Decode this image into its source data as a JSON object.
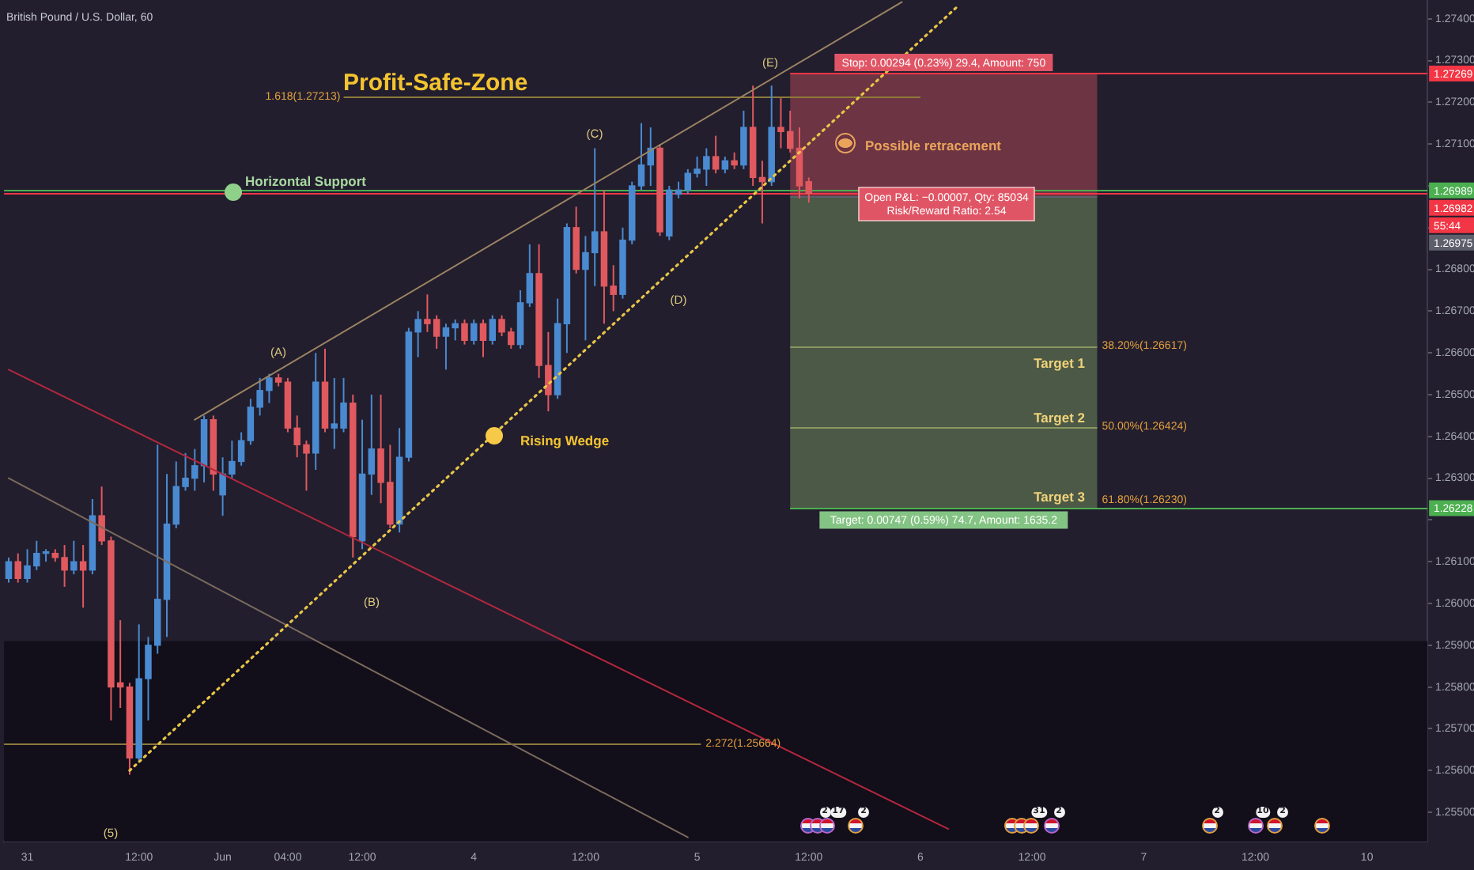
{
  "chart_data": {
    "type": "candlestick",
    "title": "British Pound / U.S. Dollar, 60",
    "categories": [
      null,
      null,
      "31",
      null,
      null,
      null,
      null,
      null,
      null,
      null,
      null,
      null,
      null,
      null,
      "12:00",
      null,
      null,
      null,
      null,
      null,
      null,
      null,
      null,
      "Jun",
      null,
      null,
      null,
      null,
      null,
      null,
      "04:00",
      null,
      null,
      null,
      null,
      null,
      null,
      null,
      "12:00",
      null,
      null,
      null,
      null,
      null,
      null,
      null,
      null,
      null,
      null,
      null,
      "4",
      null,
      null,
      null,
      null,
      null,
      null,
      null,
      null,
      null,
      null,
      null,
      "12:00",
      null,
      null,
      null,
      null,
      null,
      null,
      null,
      null,
      null,
      null,
      null,
      "5",
      null,
      null,
      null,
      null,
      null,
      null,
      null,
      null,
      null,
      null,
      null,
      "12:00",
      null,
      null,
      null,
      null,
      null,
      null,
      null,
      null,
      null,
      null,
      null,
      "6",
      null,
      null,
      null,
      null,
      null,
      null,
      null,
      null,
      null,
      null,
      null,
      "12:00",
      null,
      null,
      null,
      null,
      null,
      null,
      null,
      null,
      null,
      null,
      null,
      "7",
      null,
      null,
      null,
      null,
      null,
      null,
      null,
      null,
      null,
      null,
      null,
      "12:00",
      null,
      null,
      null,
      null,
      null,
      null,
      null,
      null,
      null,
      null,
      null,
      "10",
      null,
      null,
      null,
      null,
      null,
      null
    ],
    "ohlc": [
      [
        1.2606,
        1.2611,
        1.2605,
        1.261
      ],
      [
        1.261,
        1.2612,
        1.2605,
        1.2606
      ],
      [
        1.2606,
        1.2613,
        1.2605,
        1.2609
      ],
      [
        1.2609,
        1.2615,
        1.2608,
        1.2612
      ],
      [
        1.2612,
        1.2613,
        1.261,
        1.2612
      ],
      [
        1.2612,
        1.2613,
        1.261,
        1.2611
      ],
      [
        1.2611,
        1.2614,
        1.2604,
        1.2608
      ],
      [
        1.2608,
        1.2615,
        1.2607,
        1.261
      ],
      [
        1.261,
        1.2614,
        1.2599,
        1.2608
      ],
      [
        1.2608,
        1.2625,
        1.2607,
        1.2621
      ],
      [
        1.2621,
        1.2628,
        1.2614,
        1.2615
      ],
      [
        1.2615,
        1.2616,
        1.2572,
        1.258
      ],
      [
        1.2581,
        1.2596,
        1.2575,
        1.258
      ],
      [
        1.258,
        1.2581,
        1.2559,
        1.2563
      ],
      [
        1.2563,
        1.2595,
        1.2562,
        1.2582
      ],
      [
        1.2582,
        1.2592,
        1.2572,
        1.259
      ],
      [
        1.259,
        1.2638,
        1.2588,
        1.2601
      ],
      [
        1.2601,
        1.2631,
        1.2592,
        1.2619
      ],
      [
        1.2619,
        1.2634,
        1.2618,
        1.2628
      ],
      [
        1.2628,
        1.2636,
        1.2627,
        1.263
      ],
      [
        1.263,
        1.2637,
        1.2627,
        1.2633
      ],
      [
        1.2633,
        1.2645,
        1.2629,
        1.2644
      ],
      [
        1.2644,
        1.2645,
        1.2627,
        1.2631
      ],
      [
        1.2626,
        1.2635,
        1.2621,
        1.2631
      ],
      [
        1.2631,
        1.2639,
        1.263,
        1.2634
      ],
      [
        1.2634,
        1.2641,
        1.2633,
        1.2639
      ],
      [
        1.2639,
        1.2649,
        1.2638,
        1.2647
      ],
      [
        1.2647,
        1.2654,
        1.2645,
        1.2651
      ],
      [
        1.2651,
        1.2655,
        1.2648,
        1.2654
      ],
      [
        1.2654,
        1.2655,
        1.2652,
        1.2653
      ],
      [
        1.2653,
        1.2654,
        1.2641,
        1.2642
      ],
      [
        1.2642,
        1.2645,
        1.2635,
        1.2638
      ],
      [
        1.2638,
        1.2639,
        1.2627,
        1.2636
      ],
      [
        1.2636,
        1.266,
        1.2632,
        1.2653
      ],
      [
        1.2653,
        1.2661,
        1.2641,
        1.2642
      ],
      [
        1.2642,
        1.2654,
        1.2637,
        1.2643
      ],
      [
        1.2642,
        1.2654,
        1.2641,
        1.2648
      ],
      [
        1.2648,
        1.265,
        1.2611,
        1.2616
      ],
      [
        1.2615,
        1.2644,
        1.2613,
        1.2631
      ],
      [
        1.2631,
        1.265,
        1.2626,
        1.2637
      ],
      [
        1.2637,
        1.265,
        1.2624,
        1.2629
      ],
      [
        1.2629,
        1.2638,
        1.2618,
        1.2619
      ],
      [
        1.2619,
        1.2642,
        1.2617,
        1.2635
      ],
      [
        1.2635,
        1.2666,
        1.2634,
        1.2665
      ],
      [
        1.2665,
        1.267,
        1.2659,
        1.2668
      ],
      [
        1.2668,
        1.2674,
        1.2665,
        1.2667
      ],
      [
        1.2668,
        1.2669,
        1.2661,
        1.2664
      ],
      [
        1.2664,
        1.2667,
        1.2656,
        1.2666
      ],
      [
        1.2666,
        1.2668,
        1.2663,
        1.2667
      ],
      [
        1.2667,
        1.2668,
        1.2662,
        1.2663
      ],
      [
        1.2663,
        1.2668,
        1.2662,
        1.2667
      ],
      [
        1.2667,
        1.2668,
        1.2659,
        1.2663
      ],
      [
        1.2663,
        1.2669,
        1.2662,
        1.2668
      ],
      [
        1.2668,
        1.2669,
        1.2664,
        1.2665
      ],
      [
        1.2665,
        1.2666,
        1.2661,
        1.2662
      ],
      [
        1.2662,
        1.2675,
        1.2661,
        1.2672
      ],
      [
        1.2672,
        1.2686,
        1.2671,
        1.2679
      ],
      [
        1.2679,
        1.2686,
        1.2654,
        1.2657
      ],
      [
        1.2657,
        1.2665,
        1.2646,
        1.265
      ],
      [
        1.265,
        1.2673,
        1.2649,
        1.2667
      ],
      [
        1.2667,
        1.2691,
        1.266,
        1.269
      ],
      [
        1.269,
        1.2695,
        1.2679,
        1.268
      ],
      [
        1.268,
        1.2688,
        1.2663,
        1.2684
      ],
      [
        1.2684,
        1.2709,
        1.2676,
        1.2689
      ],
      [
        1.2689,
        1.2699,
        1.2667,
        1.2676
      ],
      [
        1.2676,
        1.2681,
        1.267,
        1.2674
      ],
      [
        1.2674,
        1.269,
        1.2673,
        1.2687
      ],
      [
        1.2687,
        1.2701,
        1.2686,
        1.27
      ],
      [
        1.27,
        1.2715,
        1.2699,
        1.2705
      ],
      [
        1.2705,
        1.2714,
        1.27,
        1.2709
      ],
      [
        1.2709,
        1.271,
        1.2688,
        1.2689
      ],
      [
        1.2688,
        1.27,
        1.2687,
        1.2699
      ],
      [
        1.2698,
        1.2701,
        1.2697,
        1.2699
      ],
      [
        1.2699,
        1.2704,
        1.2698,
        1.2703
      ],
      [
        1.2703,
        1.2707,
        1.2702,
        1.2704
      ],
      [
        1.2704,
        1.2709,
        1.27,
        1.2707
      ],
      [
        1.2707,
        1.2712,
        1.2703,
        1.2704
      ],
      [
        1.2704,
        1.2707,
        1.2703,
        1.2706
      ],
      [
        1.2706,
        1.2708,
        1.2704,
        1.2705
      ],
      [
        1.2705,
        1.2718,
        1.2704,
        1.2714
      ],
      [
        1.2714,
        1.2724,
        1.27,
        1.2702
      ],
      [
        1.2702,
        1.2706,
        1.2691,
        1.2701
      ],
      [
        1.2701,
        1.2724,
        1.27,
        1.2714
      ],
      [
        1.2714,
        1.2721,
        1.2709,
        1.2713
      ],
      [
        1.2713,
        1.2718,
        1.2708,
        1.2709
      ],
      [
        1.2709,
        1.2714,
        1.2697,
        1.27
      ],
      [
        1.2701,
        1.2702,
        1.2696,
        1.26982
      ],
      null,
      null,
      null,
      null,
      null,
      null,
      null,
      null,
      null,
      null,
      null,
      null,
      null,
      null,
      null,
      null,
      null,
      null,
      null,
      null,
      null,
      null,
      null,
      null,
      null,
      null,
      null,
      null,
      null,
      null,
      null,
      null,
      null,
      null,
      null,
      null,
      null,
      null,
      null,
      null,
      null,
      null,
      null,
      null,
      null,
      null,
      null,
      null,
      null,
      null,
      null,
      null,
      null,
      null,
      null,
      null,
      null,
      null,
      null,
      null,
      null,
      null,
      null,
      null,
      null,
      null
    ],
    "colors": [
      "#4a8ad0",
      "#e0595f",
      "#4a8ad0",
      "#4a8ad0",
      "#4a8ad0",
      "#e0595f",
      "#e0595f",
      "#4a8ad0",
      "#e0595f",
      "#4a8ad0",
      "#e0595f",
      "#e0595f",
      "#e0595f",
      "#e0595f",
      "#4a8ad0",
      "#4a8ad0",
      "#4a8ad0",
      "#4a8ad0",
      "#4a8ad0",
      "#4a8ad0",
      "#4a8ad0",
      "#4a8ad0",
      "#e0595f",
      "#4a8ad0",
      "#4a8ad0",
      "#4a8ad0",
      "#4a8ad0",
      "#4a8ad0",
      "#4a8ad0",
      "#e0595f",
      "#e0595f",
      "#e0595f",
      "#e0595f",
      "#4a8ad0",
      "#e0595f",
      "#4a8ad0",
      "#4a8ad0",
      "#e0595f",
      "#4a8ad0",
      "#4a8ad0",
      "#e0595f",
      "#e0595f",
      "#4a8ad0",
      "#4a8ad0",
      "#4a8ad0",
      "#e0595f",
      "#e0595f",
      "#4a8ad0",
      "#4a8ad0",
      "#e0595f",
      "#4a8ad0",
      "#e0595f",
      "#4a8ad0",
      "#e0595f",
      "#e0595f",
      "#4a8ad0",
      "#4a8ad0",
      "#e0595f",
      "#e0595f",
      "#4a8ad0",
      "#4a8ad0",
      "#e0595f",
      "#4a8ad0",
      "#4a8ad0",
      "#e0595f",
      "#e0595f",
      "#4a8ad0",
      "#4a8ad0",
      "#4a8ad0",
      "#4a8ad0",
      "#e0595f",
      "#4a8ad0",
      "#4a8ad0",
      "#4a8ad0",
      "#4a8ad0",
      "#4a8ad0",
      "#e0595f",
      "#4a8ad0",
      "#e0595f",
      "#4a8ad0",
      "#e0595f",
      "#e0595f",
      "#4a8ad0",
      "#e0595f",
      "#e0595f",
      "#e0595f",
      "#e0595f",
      null,
      null,
      null,
      null,
      null,
      null,
      null,
      null,
      null,
      null,
      null,
      null,
      null,
      null,
      null,
      null,
      null,
      null,
      null,
      null,
      null,
      null,
      null,
      null,
      null,
      null,
      null,
      null,
      null,
      null,
      null,
      null,
      null,
      null,
      null,
      null,
      null,
      null,
      null,
      null,
      null,
      null,
      null,
      null,
      null,
      null,
      null,
      null,
      null,
      null,
      null,
      null,
      null,
      null,
      null,
      null,
      null,
      null,
      null,
      null,
      null,
      null,
      null,
      null,
      null,
      null
    ],
    "series": [
      {
        "type": "line",
        "color": "#9c8462",
        "values": [
          null,
          null,
          null,
          null,
          null,
          null,
          null,
          null,
          null,
          null,
          null,
          null,
          null,
          null,
          null,
          null,
          null,
          null,
          null,
          null,
          1.2644,
          null,
          null,
          null,
          null,
          null,
          null,
          null,
          null,
          null,
          null,
          null,
          null,
          null,
          null,
          null,
          null,
          null,
          null,
          null,
          null,
          null,
          null,
          null,
          null,
          null,
          null,
          null,
          null,
          null,
          null,
          null,
          null,
          null,
          null,
          null,
          null,
          null,
          null,
          null,
          null,
          null,
          null,
          null,
          null,
          null,
          null,
          null,
          null,
          null,
          null,
          null,
          null,
          null,
          null,
          null,
          null,
          null,
          null,
          null,
          null,
          null,
          null,
          null,
          null,
          null,
          null,
          null,
          null,
          null,
          null,
          null,
          null,
          null,
          null,
          null,
          1.2744,
          null,
          null,
          null,
          null,
          null,
          null,
          null,
          null,
          null,
          null,
          null,
          null,
          null,
          null,
          null,
          null,
          null,
          null,
          null,
          null,
          null,
          null,
          null,
          null,
          null,
          null,
          null,
          null,
          null,
          null,
          null,
          null,
          null,
          null,
          null,
          null,
          null,
          null,
          null,
          null,
          null,
          null,
          null,
          null,
          null,
          null,
          null,
          null,
          null,
          null,
          null,
          null,
          null,
          null,
          null,
          null
        ]
      },
      {
        "type": "line",
        "color": "#e8c547",
        "line_style": "dotted",
        "values": [
          null,
          null,
          null,
          null,
          null,
          null,
          null,
          null,
          null,
          null,
          null,
          null,
          null,
          1.256,
          null,
          null,
          null,
          null,
          null,
          null,
          null,
          null,
          null,
          null,
          null,
          null,
          null,
          null,
          null,
          null,
          null,
          null,
          null,
          null,
          null,
          null,
          null,
          null,
          null,
          null,
          null,
          null,
          null,
          null,
          null,
          null,
          null,
          null,
          null,
          null,
          null,
          null,
          null,
          null,
          null,
          null,
          null,
          null,
          null,
          null,
          null,
          null,
          null,
          null,
          null,
          null,
          null,
          null,
          null,
          null,
          null,
          null,
          null,
          null,
          null,
          null,
          null,
          null,
          null,
          null,
          null,
          null,
          null,
          null,
          null,
          null,
          null,
          null,
          null,
          null,
          null,
          null,
          null,
          null,
          null,
          null,
          null,
          null,
          null,
          null,
          null,
          null,
          1.2743,
          null,
          null,
          null,
          null,
          null,
          null,
          null,
          null,
          null,
          null,
          null,
          null,
          null,
          null,
          null,
          null,
          null,
          null,
          null,
          null,
          null,
          null,
          null,
          null,
          null,
          null,
          null,
          null,
          null,
          null,
          null,
          null,
          null,
          null,
          null,
          null,
          null,
          null,
          null,
          null,
          null,
          null,
          null,
          null,
          null,
          null,
          null,
          null,
          null,
          null
        ]
      },
      {
        "type": "line",
        "color": "#b3283d",
        "values": [
          1.2656,
          null,
          null,
          null,
          null,
          null,
          null,
          null,
          null,
          null,
          null,
          null,
          null,
          null,
          null,
          null,
          null,
          null,
          null,
          null,
          null,
          null,
          null,
          null,
          null,
          null,
          null,
          null,
          null,
          null,
          null,
          null,
          null,
          null,
          null,
          null,
          null,
          null,
          null,
          null,
          null,
          null,
          null,
          null,
          null,
          null,
          null,
          null,
          null,
          null,
          null,
          null,
          null,
          null,
          null,
          null,
          null,
          null,
          null,
          null,
          null,
          null,
          null,
          null,
          null,
          null,
          null,
          null,
          null,
          null,
          null,
          null,
          null,
          null,
          null,
          null,
          null,
          null,
          null,
          null,
          null,
          null,
          null,
          null,
          null,
          null,
          null,
          null,
          null,
          null,
          null,
          null,
          null,
          null,
          null,
          null,
          null,
          null,
          null,
          null,
          null,
          1.2546,
          null,
          null,
          null,
          null,
          null,
          null,
          null,
          null,
          null,
          null,
          null,
          null,
          null,
          null,
          null,
          null,
          null,
          null,
          null,
          null,
          null,
          null,
          null,
          null,
          null,
          null,
          null,
          null,
          null,
          null,
          null,
          null,
          null,
          null,
          null,
          null,
          null,
          null,
          null,
          null,
          null,
          null,
          null,
          null,
          null,
          null,
          null,
          null,
          null,
          null,
          null
        ]
      },
      {
        "type": "line",
        "color": "#7b6b5d",
        "values": [
          1.263,
          null,
          null,
          null,
          null,
          null,
          null,
          null,
          null,
          null,
          null,
          null,
          null,
          null,
          null,
          null,
          null,
          null,
          null,
          null,
          null,
          null,
          null,
          null,
          null,
          null,
          null,
          null,
          null,
          null,
          null,
          null,
          null,
          null,
          null,
          null,
          null,
          null,
          null,
          null,
          null,
          null,
          null,
          null,
          null,
          null,
          null,
          null,
          null,
          null,
          null,
          null,
          null,
          null,
          null,
          null,
          null,
          null,
          null,
          null,
          null,
          null,
          null,
          null,
          null,
          null,
          null,
          null,
          null,
          null,
          null,
          null,
          null,
          1.2544,
          null,
          null,
          null,
          null,
          null,
          null,
          null,
          null,
          null,
          null,
          null,
          null,
          null,
          null,
          null,
          null,
          null,
          null,
          null,
          null,
          null,
          null,
          null,
          null,
          null,
          null,
          null,
          null,
          null,
          null,
          null,
          null,
          null,
          null,
          null,
          null,
          null,
          null,
          null,
          null,
          null,
          null,
          null,
          null,
          null,
          null,
          null,
          null,
          null,
          null,
          null,
          null,
          null,
          null,
          null,
          null,
          null,
          null,
          null,
          null,
          null,
          null,
          null,
          null,
          null,
          null,
          null,
          null,
          null,
          null,
          null,
          null,
          null,
          null,
          null,
          null,
          null,
          null,
          null
        ]
      }
    ],
    "ylim": [
      1.2543,
      1.27445
    ],
    "yticks": [
      {
        "value": 1.255,
        "label": "1.25500"
      },
      {
        "value": 1.256,
        "label": "1.25600"
      },
      {
        "value": 1.257,
        "label": "1.25700"
      },
      {
        "value": 1.258,
        "label": "1.25800"
      },
      {
        "value": 1.259,
        "label": "1.25900"
      },
      {
        "value": 1.26,
        "label": "1.26000"
      },
      {
        "value": 1.261,
        "label": "1.26100"
      },
      {
        "value": 1.262,
        "label": null
      },
      {
        "value": 1.263,
        "label": "1.26300"
      },
      {
        "value": 1.264,
        "label": "1.26400"
      },
      {
        "value": 1.265,
        "label": "1.26500"
      },
      {
        "value": 1.266,
        "label": "1.26600"
      },
      {
        "value": 1.267,
        "label": "1.26700"
      },
      {
        "value": 1.268,
        "label": "1.26800"
      },
      {
        "value": 1.269,
        "label": null
      },
      {
        "value": 1.27,
        "label": null
      },
      {
        "value": 1.271,
        "label": "1.27100"
      },
      {
        "value": 1.272,
        "label": "1.27200"
      },
      {
        "value": 1.273,
        "label": "1.27300"
      },
      {
        "value": 1.274,
        "label": "1.27400"
      }
    ],
    "ref_lines": [
      {
        "axis": "y",
        "value": 1.27269,
        "label": "1.27269",
        "color": "#f23645"
      },
      {
        "axis": "y",
        "value": 1.27213,
        "label": "1.618(1.27213)",
        "color": "#8c7a3c"
      },
      {
        "axis": "y",
        "value": 1.26989,
        "label": "1.26989",
        "color": "#4caf50"
      },
      {
        "axis": "y",
        "value": 1.26982,
        "color": "#f23645"
      },
      {
        "axis": "y",
        "value": 1.26975,
        "color": "#5d606b"
      },
      {
        "axis": "y",
        "value": 1.26617,
        "label": "38.20%(1.26617)",
        "color": "#8a9660"
      },
      {
        "axis": "y",
        "value": 1.26424,
        "label": "50.00%(1.26424)",
        "color": "#8a9660"
      },
      {
        "axis": "y",
        "value": 1.2623,
        "label": "61.80%(1.26230)",
        "color": "#8a9660"
      },
      {
        "axis": "y",
        "value": 1.26228,
        "label": "1.26228",
        "color": "#4caf50"
      },
      {
        "axis": "y",
        "value": 1.25664,
        "label": "2.272(1.25664)",
        "color": "#8c7a3c"
      }
    ],
    "bands": [
      {
        "axis": "y",
        "from": 1.2543,
        "to": 1.2591,
        "color": "#120e1a"
      },
      {
        "axis": "y",
        "from": 1.26975,
        "to": 1.27269,
        "label": "Stop: 0.00294 (0.23%) 29.4, Amount: 750",
        "color": "#6d3443"
      },
      {
        "axis": "y",
        "from": 1.26228,
        "to": 1.26975,
        "label": "Target: 0.00747 (0.59%) 74.7, Amount: 1635.2",
        "color": "#4b5946"
      }
    ],
    "annotations": [
      "Profit-Safe-Zone",
      "Horizontal Support",
      "Rising Wedge",
      "Possible retracement",
      "(A)",
      "(B)",
      "(C)",
      "(D)",
      "(E)",
      "(5)",
      "Target 1",
      "Target 2",
      "Target 3",
      "Open P&L: −0.00007, Qty: 85034",
      "Risk/Reward Ratio: 2.54",
      "1.26982",
      "55:44",
      "1.26975",
      "2",
      "17",
      "2",
      "31",
      "2",
      "2",
      "10",
      "2"
    ]
  }
}
